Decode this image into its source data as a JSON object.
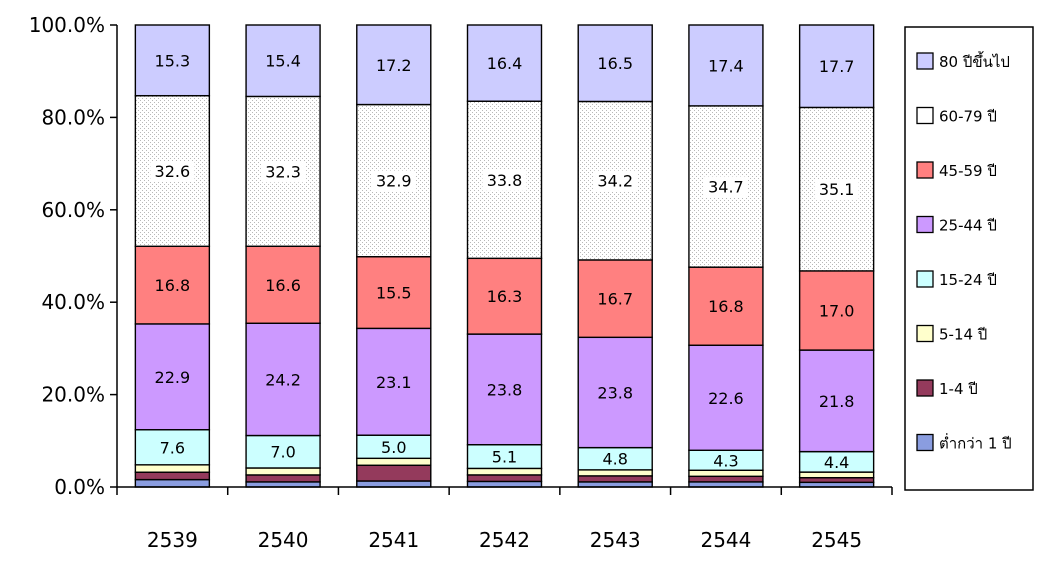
{
  "chart_data": {
    "type": "bar",
    "stacked": true,
    "categories": [
      "2539",
      "2540",
      "2541",
      "2542",
      "2543",
      "2544",
      "2545"
    ],
    "ylim": [
      0,
      100
    ],
    "yticks": [
      "0.0%",
      "20.0%",
      "40.0%",
      "60.0%",
      "80.0%",
      "100.0%"
    ],
    "legend_position": "right",
    "series": [
      {
        "name": "ต่ำกว่า 1 ปี",
        "color": "#8a9de0",
        "values": [
          1.6,
          1.1,
          1.3,
          1.2,
          1.1,
          1.1,
          1.0
        ],
        "labels": [
          "",
          "",
          "",
          "",
          "",
          "",
          ""
        ]
      },
      {
        "name": "1-4 ปี",
        "color": "#943a5c",
        "values": [
          1.6,
          1.5,
          3.4,
          1.4,
          1.3,
          1.2,
          1.0
        ],
        "labels": [
          "",
          "",
          "",
          "",
          "",
          "",
          ""
        ]
      },
      {
        "name": "5-14 ปี",
        "color": "#ffffcc",
        "values": [
          1.6,
          1.5,
          1.5,
          1.4,
          1.3,
          1.3,
          1.2
        ],
        "labels": [
          "",
          "",
          "",
          "",
          "",
          "",
          ""
        ]
      },
      {
        "name": "15-24 ปี",
        "color": "#ccffff",
        "values": [
          7.6,
          7.0,
          5.0,
          5.1,
          4.8,
          4.3,
          4.4
        ],
        "labels": [
          "7.6",
          "7.0",
          "5.0",
          "5.1",
          "4.8",
          "4.3",
          "4.4"
        ]
      },
      {
        "name": "25-44 ปี",
        "color": "#cc99ff",
        "values": [
          22.9,
          24.2,
          23.1,
          23.8,
          23.8,
          22.6,
          21.8
        ],
        "labels": [
          "22.9",
          "24.2",
          "23.1",
          "23.8",
          "23.8",
          "22.6",
          "21.8"
        ]
      },
      {
        "name": "45-59 ปี",
        "color": "#ff8080",
        "values": [
          16.8,
          16.6,
          15.5,
          16.3,
          16.7,
          16.8,
          17.0
        ],
        "labels": [
          "16.8",
          "16.6",
          "15.5",
          "16.3",
          "16.7",
          "16.8",
          "17.0"
        ]
      },
      {
        "name": "60-79 ปี",
        "color": "#f4f4f4",
        "values": [
          32.6,
          32.3,
          32.9,
          33.8,
          34.2,
          34.7,
          35.1
        ],
        "labels": [
          "32.6",
          "32.3",
          "32.9",
          "33.8",
          "34.2",
          "34.7",
          "35.1"
        ]
      },
      {
        "name": "80 ปีขึ้นไป",
        "color": "#ccccff",
        "values": [
          15.3,
          15.4,
          17.2,
          16.4,
          16.5,
          17.4,
          17.7
        ],
        "labels": [
          "15.3",
          "15.4",
          "17.2",
          "16.4",
          "16.5",
          "17.4",
          "17.7"
        ]
      }
    ]
  }
}
